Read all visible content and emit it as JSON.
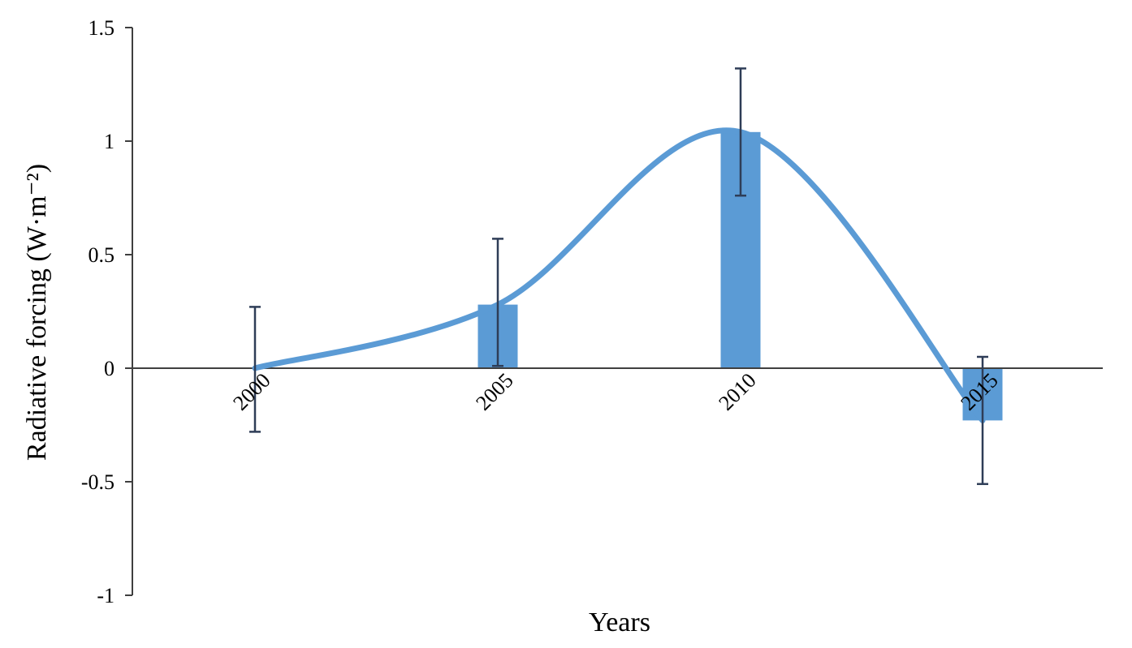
{
  "chart_data": {
    "type": "bar",
    "xlabel": "Years",
    "ylabel": "Radiative forcing (W·m⁻²)",
    "ylim": [
      -1,
      1.5
    ],
    "yticks": [
      1.5,
      1,
      0.5,
      0,
      -0.5,
      -1
    ],
    "ytick_labels": [
      "1.5",
      "1",
      "0.5",
      "0",
      "-0.5",
      "-1"
    ],
    "categories": [
      "2000",
      "2005",
      "2010",
      "2015"
    ],
    "values": [
      0,
      0.28,
      1.04,
      -0.23
    ],
    "error_bars": [
      {
        "low": -0.28,
        "high": 0.27
      },
      {
        "low": 0.01,
        "high": 0.57
      },
      {
        "low": 0.76,
        "high": 1.32
      },
      {
        "low": -0.51,
        "high": 0.05
      }
    ],
    "trend_line": {
      "style": "smooth curve through bar values",
      "y": [
        0,
        0.28,
        1.04,
        -0.23
      ]
    },
    "grid": false,
    "legend": "none",
    "colors": {
      "bar": "#5b9bd5",
      "curve": "#5b9bd5",
      "error_bar": "#2e3d57",
      "axis": "#3f3f3f"
    }
  }
}
